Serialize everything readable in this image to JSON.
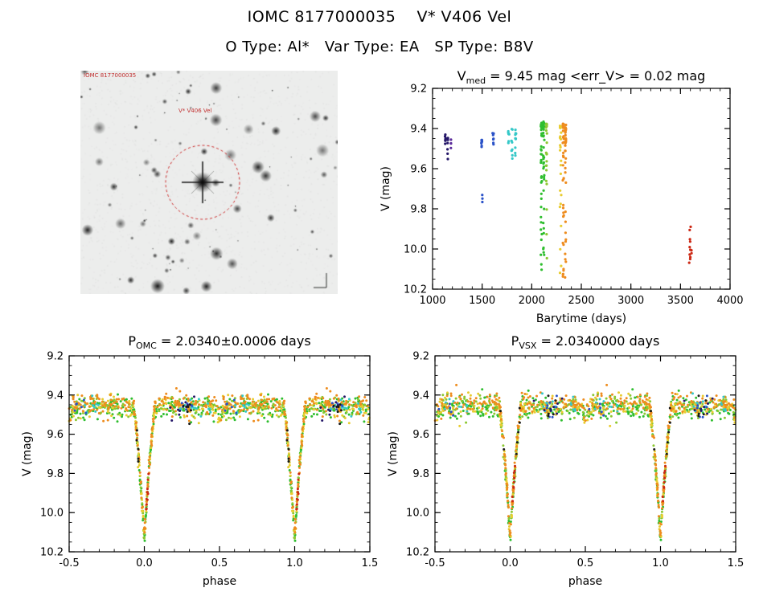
{
  "header": {
    "title": "IOMC 8177000035    V* V406 Vel",
    "subtitle": "O Type: Al*   Var Type: EA   SP Type: B8V"
  },
  "finding_chart": {
    "corner_label": "IOMC 8177000035",
    "target_label": "V* V406 Vel",
    "circle_color": "#cc2222",
    "n_stars": 95,
    "seed": 7
  },
  "chart_data": [
    {
      "id": "barytime",
      "type": "scatter",
      "title": {
        "base": "V",
        "sub": "med",
        "rest": " = 9.45 mag <err_V> = 0.02 mag"
      },
      "xlabel": "Barytime (days)",
      "ylabel": "V (mag)",
      "xlim": [
        1000,
        4000
      ],
      "ylim": [
        9.2,
        10.2
      ],
      "xticks": [
        1000,
        1500,
        2000,
        2500,
        3000,
        3500,
        4000
      ],
      "xtick_labels": [
        "1000",
        "1500",
        "2000",
        "2500",
        "3000",
        "3500",
        "4000"
      ],
      "yticks": [
        9.2,
        9.4,
        9.6,
        9.8,
        10.0,
        10.2
      ],
      "ytick_labels": [
        "9.2",
        "9.4",
        "9.6",
        "9.8",
        "10.0",
        "10.2"
      ],
      "xminor": 100,
      "yminor": 0.05,
      "grid": false,
      "groups": [
        {
          "name": "epoch-1",
          "color": "#241668",
          "columns": [
            {
              "x": 1128,
              "xspread": 8,
              "n": 6,
              "mag_min": 9.43,
              "mag_max": 9.5,
              "skew": 1.2
            },
            {
              "x": 1152,
              "xspread": 8,
              "n": 8,
              "mag_min": 9.44,
              "mag_max": 9.55,
              "skew": 1.5
            }
          ]
        },
        {
          "name": "epoch-2",
          "color": "#5a2a9a",
          "columns": [
            {
              "x": 1186,
              "xspread": 6,
              "n": 4,
              "mag_min": 9.44,
              "mag_max": 9.5,
              "skew": 1.2
            }
          ]
        },
        {
          "name": "epoch-3",
          "color": "#2a52c8",
          "columns": [
            {
              "x": 1496,
              "xspread": 10,
              "n": 9,
              "mag_min": 9.42,
              "mag_max": 9.5,
              "skew": 1.2
            },
            {
              "x": 1500,
              "xspread": 6,
              "n": 3,
              "mag_min": 9.73,
              "mag_max": 9.79,
              "skew": 1.0
            },
            {
              "x": 1612,
              "xspread": 14,
              "n": 8,
              "mag_min": 9.42,
              "mag_max": 9.49,
              "skew": 1.2
            }
          ]
        },
        {
          "name": "epoch-4",
          "color": "#35c8c8",
          "columns": [
            {
              "x": 1768,
              "xspread": 10,
              "n": 8,
              "mag_min": 9.41,
              "mag_max": 9.5,
              "skew": 1.3
            },
            {
              "x": 1800,
              "xspread": 10,
              "n": 10,
              "mag_min": 9.4,
              "mag_max": 9.56,
              "skew": 1.5
            },
            {
              "x": 1838,
              "xspread": 10,
              "n": 10,
              "mag_min": 9.41,
              "mag_max": 9.54,
              "skew": 1.5
            }
          ]
        },
        {
          "name": "epoch-5",
          "color": "#2fbe2f",
          "columns": [
            {
              "x": 2098,
              "xspread": 12,
              "n": 42,
              "mag_min": 9.38,
              "mag_max": 10.16,
              "skew": 3.0
            },
            {
              "x": 2122,
              "xspread": 12,
              "n": 42,
              "mag_min": 9.38,
              "mag_max": 10.14,
              "skew": 3.0
            }
          ]
        },
        {
          "name": "epoch-6",
          "color": "#8cc832",
          "columns": [
            {
              "x": 2150,
              "xspread": 10,
              "n": 22,
              "mag_min": 9.38,
              "mag_max": 10.1,
              "skew": 3.0
            }
          ]
        },
        {
          "name": "epoch-7",
          "color": "#e8cc30",
          "columns": [
            {
              "x": 2290,
              "xspread": 14,
              "n": 26,
              "mag_min": 9.39,
              "mag_max": 10.12,
              "skew": 2.6
            }
          ]
        },
        {
          "name": "epoch-8",
          "color": "#ee8c1e",
          "columns": [
            {
              "x": 2318,
              "xspread": 10,
              "n": 36,
              "mag_min": 9.38,
              "mag_max": 10.15,
              "skew": 3.0
            },
            {
              "x": 2341,
              "xspread": 10,
              "n": 34,
              "mag_min": 9.39,
              "mag_max": 10.16,
              "skew": 3.0
            }
          ]
        },
        {
          "name": "epoch-9",
          "color": "#cc2814",
          "columns": [
            {
              "x": 3600,
              "xspread": 24,
              "n": 12,
              "mag_min": 9.88,
              "mag_max": 10.07,
              "skew": 1.0
            }
          ]
        }
      ]
    },
    {
      "id": "phase_omc",
      "type": "scatter",
      "title": {
        "base": "P",
        "sub": "OMC",
        "rest": " = 2.0340±0.0006 days"
      },
      "xlabel": "phase",
      "ylabel": "V (mag)",
      "xlim": [
        -0.5,
        1.5
      ],
      "ylim": [
        9.2,
        10.2
      ],
      "xticks": [
        -0.5,
        0.0,
        0.5,
        1.0,
        1.5
      ],
      "xtick_labels": [
        "-0.5",
        "0.0",
        "0.5",
        "1.0",
        "1.5"
      ],
      "yticks": [
        9.2,
        9.4,
        9.6,
        9.8,
        10.0,
        10.2
      ],
      "ytick_labels": [
        "9.2",
        "9.4",
        "9.6",
        "9.8",
        "10.0",
        "10.2"
      ],
      "xminor": 0.1,
      "yminor": 0.05,
      "grid": false,
      "model": {
        "baseline": 9.46,
        "primary_depth": 0.67,
        "primary_halfwidth": 0.075,
        "secondary_depth": 0.04,
        "secondary_halfwidth": 0.06,
        "noise": 0.028,
        "noise_eclipse": 0.02
      },
      "groups": [
        {
          "name": "green",
          "color": "#2fbe2f",
          "n": 170,
          "offset": 0.005,
          "eclipse_extra": 45
        },
        {
          "name": "yellow-green",
          "color": "#8cc832",
          "n": 100,
          "offset": 0.0,
          "eclipse_extra": 25
        },
        {
          "name": "yellow",
          "color": "#e8cc30",
          "n": 110,
          "offset": 0.0,
          "eclipse_extra": 50
        },
        {
          "name": "orange",
          "color": "#ee8c1e",
          "n": 150,
          "offset": -0.018,
          "eclipse_extra": 50
        },
        {
          "name": "cyan",
          "color": "#35c8c8",
          "n": 24,
          "offset": -0.005,
          "windows": [
            [
              0.2,
              0.45
            ],
            [
              0.55,
              0.72
            ]
          ]
        },
        {
          "name": "blue",
          "color": "#2a52c8",
          "n": 12,
          "offset": 0.0,
          "windows": [
            [
              0.22,
              0.33
            ],
            [
              0.52,
              0.63
            ]
          ]
        },
        {
          "name": "navy",
          "color": "#241668",
          "n": 8,
          "offset": 0.0,
          "windows": [
            [
              0.15,
              0.35
            ]
          ]
        },
        {
          "name": "black",
          "color": "#1a1a1a",
          "n": 12,
          "offset": 0.0,
          "windows": [
            [
              0.04,
              0.068
            ],
            [
              0.932,
              0.96
            ],
            [
              0.25,
              0.31
            ]
          ]
        },
        {
          "name": "red",
          "color": "#cc2814",
          "n": 10,
          "offset": 0.0,
          "windows": [
            [
              0.012,
              0.032
            ]
          ]
        }
      ]
    },
    {
      "id": "phase_vsx",
      "type": "scatter",
      "title": {
        "base": "P",
        "sub": "VSX",
        "rest": " = 2.0340000 days"
      },
      "xlabel": "phase",
      "ylabel": "V (mag)",
      "xlim": [
        -0.5,
        1.5
      ],
      "ylim": [
        9.2,
        10.2
      ],
      "xticks": [
        -0.5,
        0.0,
        0.5,
        1.0,
        1.5
      ],
      "xtick_labels": [
        "-0.5",
        "0.0",
        "0.5",
        "1.0",
        "1.5"
      ],
      "yticks": [
        9.2,
        9.4,
        9.6,
        9.8,
        10.0,
        10.2
      ],
      "ytick_labels": [
        "9.2",
        "9.4",
        "9.6",
        "9.8",
        "10.0",
        "10.2"
      ],
      "xminor": 0.1,
      "yminor": 0.05,
      "grid": false,
      "model": {
        "baseline": 9.46,
        "primary_depth": 0.67,
        "primary_halfwidth": 0.075,
        "secondary_depth": 0.04,
        "secondary_halfwidth": 0.06,
        "noise": 0.028,
        "noise_eclipse": 0.02
      },
      "groups": [
        {
          "name": "green",
          "color": "#2fbe2f",
          "n": 170,
          "offset": 0.005,
          "eclipse_extra": 45
        },
        {
          "name": "yellow-green",
          "color": "#8cc832",
          "n": 100,
          "offset": 0.0,
          "eclipse_extra": 25
        },
        {
          "name": "yellow",
          "color": "#e8cc30",
          "n": 110,
          "offset": 0.0,
          "eclipse_extra": 50
        },
        {
          "name": "orange",
          "color": "#ee8c1e",
          "n": 150,
          "offset": -0.018,
          "eclipse_extra": 50
        },
        {
          "name": "cyan",
          "color": "#35c8c8",
          "n": 24,
          "offset": -0.005,
          "windows": [
            [
              0.2,
              0.45
            ],
            [
              0.55,
              0.72
            ]
          ]
        },
        {
          "name": "blue",
          "color": "#2a52c8",
          "n": 12,
          "offset": 0.0,
          "windows": [
            [
              0.22,
              0.33
            ],
            [
              0.52,
              0.63
            ]
          ]
        },
        {
          "name": "navy",
          "color": "#241668",
          "n": 8,
          "offset": 0.0,
          "windows": [
            [
              0.15,
              0.35
            ]
          ]
        },
        {
          "name": "black",
          "color": "#1a1a1a",
          "n": 12,
          "offset": 0.0,
          "windows": [
            [
              0.04,
              0.068
            ],
            [
              0.932,
              0.96
            ],
            [
              0.25,
              0.31
            ]
          ]
        },
        {
          "name": "red",
          "color": "#cc2814",
          "n": 10,
          "offset": 0.0,
          "windows": [
            [
              0.012,
              0.032
            ]
          ]
        }
      ]
    }
  ]
}
